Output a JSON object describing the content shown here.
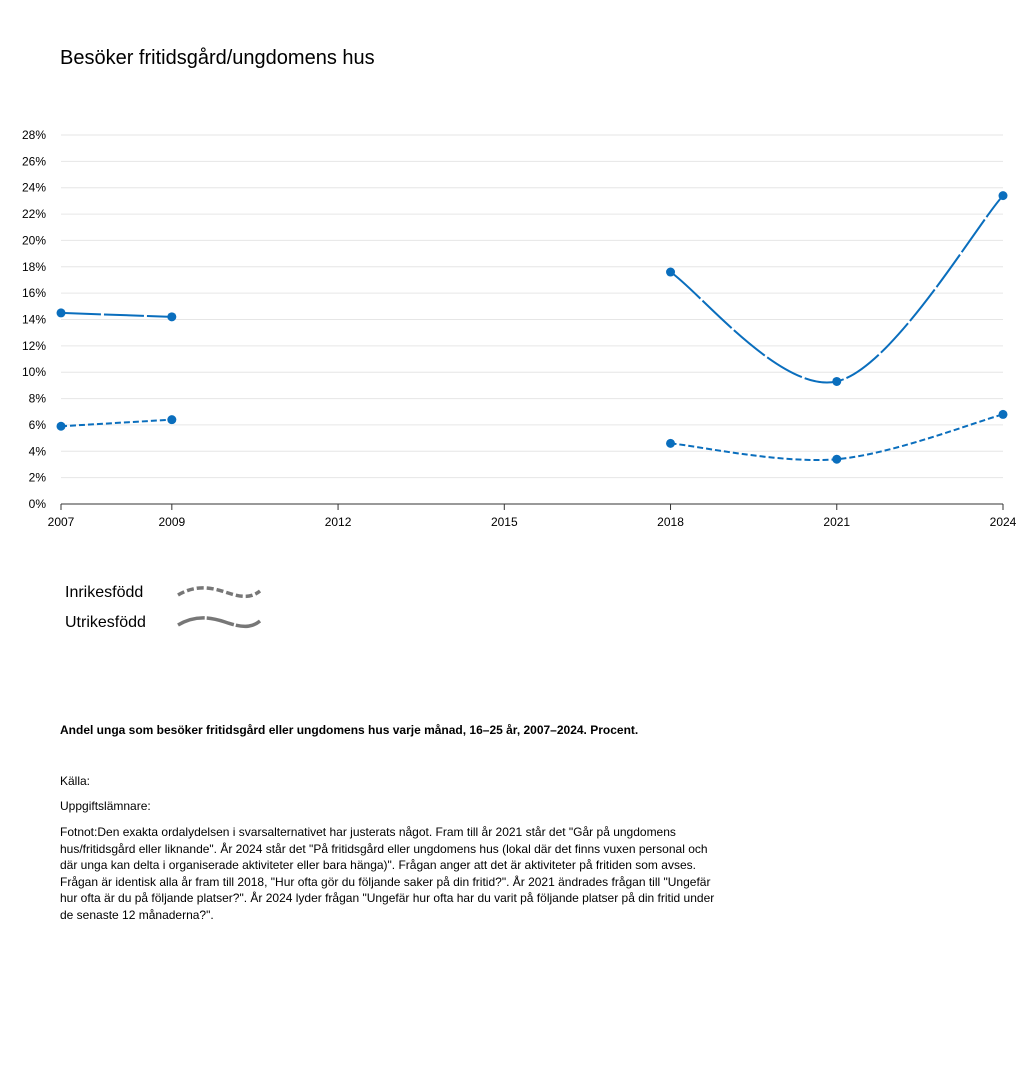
{
  "title": "Besöker fritidsgård/ungdomens hus",
  "chart_data": {
    "type": "line",
    "x": [
      2007,
      2009,
      2018,
      2021,
      2024
    ],
    "xticks": [
      2007,
      2009,
      2012,
      2015,
      2018,
      2021,
      2024
    ],
    "ylim": [
      0,
      28
    ],
    "yticks": [
      0,
      2,
      4,
      6,
      8,
      10,
      12,
      14,
      16,
      18,
      20,
      22,
      24,
      26,
      28
    ],
    "ytick_labels": [
      "0%",
      "2%",
      "4%",
      "6%",
      "8%",
      "10%",
      "12%",
      "14%",
      "16%",
      "18%",
      "20%",
      "22%",
      "24%",
      "26%",
      "28%"
    ],
    "grid": true,
    "legend_position": "bottom-left",
    "color": "#0a6ebd",
    "series": [
      {
        "name": "Inrikesfödd",
        "style": "dashed",
        "segments": [
          [
            [
              2007,
              5.9
            ],
            [
              2009,
              6.4
            ]
          ],
          [
            [
              2018,
              4.6
            ],
            [
              2021,
              3.4
            ],
            [
              2024,
              6.8
            ]
          ]
        ]
      },
      {
        "name": "Utrikesfödd",
        "style": "solid",
        "segments": [
          [
            [
              2007,
              14.5
            ],
            [
              2009,
              14.2
            ]
          ],
          [
            [
              2018,
              17.6
            ],
            [
              2021,
              9.3
            ],
            [
              2024,
              23.4
            ]
          ]
        ]
      }
    ]
  },
  "legend": [
    {
      "label": "Inrikesfödd",
      "style": "dashed"
    },
    {
      "label": "Utrikesfödd",
      "style": "solid"
    }
  ],
  "caption": "Andel unga som besöker fritidsgård eller ungdomens hus varje månad, 16–25 år, 2007–2024. Procent.",
  "source_label": "Källa:",
  "provider_label": "Uppgiftslämnare:",
  "footnote": "Fotnot:Den exakta ordalydelsen i svarsalternativet har justerats något. Fram till år 2021 står det \"Går på ungdomens hus/fritidsgård eller liknande\". År 2024 står det \"På fritidsgård eller ungdomens hus (lokal där det finns vuxen personal och där unga kan delta i organiserade aktiviteter eller bara hänga)\". Frågan anger att det är aktiviteter på fritiden som avses. Frågan är identisk alla år fram till 2018, \"Hur ofta gör du följande saker på din fritid?\". År 2021 ändrades frågan till \"Ungefär hur ofta är du på följande platser?\". År 2024 lyder frågan \"Ungefär hur ofta har du varit på följande platser på din fritid under de senaste 12 månaderna?\"."
}
